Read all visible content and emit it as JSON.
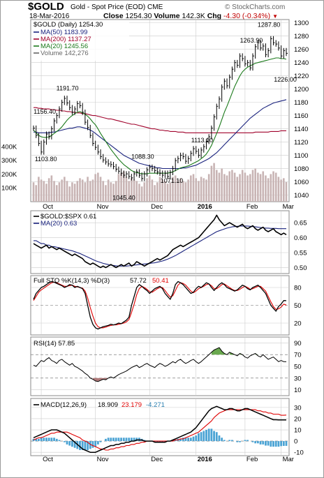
{
  "header": {
    "symbol": "$GOLD",
    "name": "Gold - Spot Price (EOD)",
    "exchange": "CME",
    "date": "18-Mar-2016",
    "close_label": "Close",
    "close": "1254.30",
    "volume_label": "Volume",
    "volume": "142.3K",
    "chg_label": "Chg",
    "chg": "-4.30 (-0.34%)",
    "brand": "© StockCharts.com"
  },
  "colors": {
    "price": "#000000",
    "ma50": "#1a237e",
    "ma200": "#a0002a",
    "ma20": "#1b7a1b",
    "volume": "#c8b4b4",
    "k": "#000000",
    "d": "#e00000",
    "rsi": "#000000",
    "macd": "#000000",
    "signal": "#e00000",
    "hist": "#4aa3d4",
    "ratio": "#000000",
    "ratio_ma": "#1a237e",
    "grid": "#cccccc"
  },
  "chart_data": [
    {
      "type": "line",
      "panel": "price",
      "legend": {
        "main": "$GOLD (Daily) 1254.30",
        "ma50": "MA(50) 1183.99",
        "ma200": "MA(200) 1137.27",
        "ma20": "MA(20) 1245.56",
        "volume": "Volume 142,276"
      },
      "ylim": [
        1030,
        1305
      ],
      "y_ticks": [
        "1300",
        "1280",
        "1260",
        "1240",
        "1220",
        "1200",
        "1180",
        "1160",
        "1140",
        "1120",
        "1100",
        "1080",
        "1060",
        "1040"
      ],
      "volume_ticks": [
        "400K",
        "300K",
        "200K",
        "100K"
      ],
      "x_ticks": [
        "Oct",
        "Nov",
        "Dec",
        "2016",
        "Feb",
        "Mar"
      ],
      "annotations": [
        "1191.70",
        "1156.40",
        "1103.80",
        "1113.10",
        "1088.30",
        "1071.10",
        "1045.40",
        "1263.90",
        "1287.80",
        "1226.00"
      ],
      "close": [
        1141,
        1130,
        1118,
        1105,
        1120,
        1132,
        1128,
        1140,
        1152,
        1160,
        1170,
        1180,
        1186,
        1179,
        1172,
        1165,
        1170,
        1178,
        1175,
        1165,
        1150,
        1142,
        1130,
        1118,
        1112,
        1105,
        1098,
        1093,
        1090,
        1087,
        1086,
        1083,
        1079,
        1076,
        1073,
        1070,
        1072,
        1068,
        1066,
        1072,
        1075,
        1070,
        1065,
        1072,
        1078,
        1082,
        1080,
        1077,
        1075,
        1073,
        1070,
        1073,
        1068,
        1074,
        1080,
        1092,
        1095,
        1100,
        1098,
        1091,
        1095,
        1103,
        1110,
        1106,
        1100,
        1108,
        1113,
        1121,
        1128,
        1141,
        1158,
        1174,
        1185,
        1203,
        1212,
        1205,
        1218,
        1230,
        1240,
        1236,
        1250,
        1246,
        1238,
        1240,
        1232,
        1250,
        1264,
        1270,
        1262,
        1265,
        1252,
        1258,
        1276,
        1270,
        1268,
        1262,
        1250,
        1258,
        1254
      ],
      "ma20": [
        1138,
        1134,
        1130,
        1128,
        1127,
        1127,
        1128,
        1130,
        1133,
        1136,
        1139,
        1143,
        1148,
        1153,
        1157,
        1160,
        1163,
        1165,
        1166,
        1164,
        1162,
        1159,
        1155,
        1150,
        1146,
        1140,
        1133,
        1127,
        1121,
        1115,
        1109,
        1104,
        1099,
        1094,
        1090,
        1086,
        1083,
        1080,
        1077,
        1075,
        1074,
        1073,
        1072,
        1072,
        1072,
        1073,
        1073,
        1073,
        1073,
        1073,
        1073,
        1073,
        1073,
        1074,
        1075,
        1077,
        1079,
        1081,
        1082,
        1083,
        1084,
        1086,
        1088,
        1090,
        1092,
        1095,
        1098,
        1102,
        1108,
        1115,
        1124,
        1133,
        1143,
        1154,
        1165,
        1174,
        1184,
        1194,
        1204,
        1212,
        1220,
        1226,
        1230,
        1233,
        1235,
        1237,
        1239,
        1240,
        1241,
        1242,
        1243,
        1244,
        1245,
        1246,
        1247,
        1247,
        1246,
        1246,
        1245
      ],
      "ma50": [
        1135,
        1135,
        1134,
        1134,
        1134,
        1134,
        1134,
        1135,
        1135,
        1136,
        1137,
        1138,
        1139,
        1140,
        1141,
        1141,
        1142,
        1143,
        1143,
        1142,
        1141,
        1140,
        1138,
        1136,
        1133,
        1130,
        1127,
        1124,
        1121,
        1118,
        1115,
        1112,
        1109,
        1106,
        1103,
        1100,
        1098,
        1096,
        1094,
        1092,
        1090,
        1088,
        1087,
        1086,
        1085,
        1084,
        1083,
        1082,
        1081,
        1081,
        1080,
        1080,
        1080,
        1080,
        1080,
        1080,
        1080,
        1080,
        1081,
        1081,
        1082,
        1083,
        1084,
        1085,
        1087,
        1089,
        1091,
        1093,
        1095,
        1098,
        1101,
        1104,
        1108,
        1112,
        1116,
        1120,
        1124,
        1128,
        1132,
        1136,
        1140,
        1144,
        1148,
        1152,
        1156,
        1159,
        1162,
        1165,
        1168,
        1171,
        1173,
        1175,
        1177,
        1179,
        1180,
        1181,
        1182,
        1183,
        1184
      ],
      "ma200": [
        1172,
        1172,
        1171,
        1171,
        1170,
        1170,
        1170,
        1169,
        1169,
        1168,
        1168,
        1167,
        1167,
        1166,
        1166,
        1165,
        1165,
        1164,
        1164,
        1163,
        1163,
        1162,
        1161,
        1160,
        1160,
        1159,
        1158,
        1157,
        1156,
        1155,
        1155,
        1154,
        1153,
        1152,
        1151,
        1150,
        1149,
        1148,
        1147,
        1147,
        1146,
        1145,
        1144,
        1143,
        1142,
        1141,
        1140,
        1140,
        1139,
        1138,
        1138,
        1137,
        1137,
        1136,
        1136,
        1136,
        1135,
        1135,
        1135,
        1134,
        1134,
        1134,
        1134,
        1134,
        1134,
        1134,
        1134,
        1134,
        1134,
        1134,
        1134,
        1134,
        1134,
        1134,
        1134,
        1134,
        1134,
        1134,
        1134,
        1134,
        1134,
        1134,
        1134,
        1134,
        1134,
        1134,
        1135,
        1135,
        1135,
        1135,
        1135,
        1135,
        1136,
        1136,
        1136,
        1136,
        1137,
        1137,
        1137
      ],
      "volume_k": [
        140,
        120,
        180,
        160,
        150,
        130,
        170,
        190,
        150,
        120,
        140,
        160,
        180,
        150,
        110,
        140,
        130,
        150,
        170,
        160,
        140,
        180,
        150,
        160,
        200,
        210,
        180,
        150,
        120,
        160,
        140,
        130,
        150,
        200,
        210,
        220,
        180,
        150,
        170,
        160,
        150,
        130,
        110,
        140,
        170,
        190,
        160,
        120,
        140,
        180,
        160,
        150,
        130,
        140,
        180,
        190,
        160,
        170,
        150,
        140,
        160,
        190,
        200,
        170,
        150,
        180,
        170,
        160,
        200,
        260,
        280,
        230,
        210,
        240,
        200,
        190,
        220,
        230,
        210,
        180,
        200,
        230,
        210,
        190,
        200,
        230,
        240,
        210,
        200,
        220,
        190,
        170,
        200,
        220,
        210,
        180,
        160,
        170,
        142
      ]
    },
    {
      "type": "line",
      "panel": "ratio",
      "legend": {
        "main": "$GOLD:$SPX 0.61",
        "ma": "MA(20) 0.63"
      },
      "ylim": [
        0.48,
        0.69
      ],
      "y_ticks": [
        "0.65",
        "0.60",
        "0.55",
        "0.50"
      ],
      "ratio": [
        0.58,
        0.575,
        0.57,
        0.565,
        0.57,
        0.575,
        0.565,
        0.57,
        0.565,
        0.56,
        0.565,
        0.56,
        0.555,
        0.55,
        0.545,
        0.54,
        0.545,
        0.54,
        0.535,
        0.53,
        0.52,
        0.515,
        0.51,
        0.515,
        0.51,
        0.505,
        0.5,
        0.505,
        0.5,
        0.505,
        0.51,
        0.505,
        0.5,
        0.505,
        0.51,
        0.505,
        0.51,
        0.515,
        0.505,
        0.51,
        0.52,
        0.515,
        0.51,
        0.505,
        0.51,
        0.515,
        0.52,
        0.525,
        0.53,
        0.525,
        0.53,
        0.535,
        0.54,
        0.55,
        0.56,
        0.565,
        0.57,
        0.575,
        0.57,
        0.575,
        0.58,
        0.585,
        0.59,
        0.595,
        0.6,
        0.61,
        0.62,
        0.63,
        0.64,
        0.65,
        0.66,
        0.675,
        0.66,
        0.65,
        0.64,
        0.645,
        0.65,
        0.645,
        0.64,
        0.635,
        0.64,
        0.645,
        0.635,
        0.63,
        0.635,
        0.64,
        0.63,
        0.625,
        0.63,
        0.635,
        0.625,
        0.62,
        0.625,
        0.63,
        0.62,
        0.615,
        0.61,
        0.615,
        0.61
      ],
      "ma": [
        0.59,
        0.59,
        0.585,
        0.58,
        0.58,
        0.575,
        0.575,
        0.57,
        0.57,
        0.568,
        0.566,
        0.564,
        0.562,
        0.56,
        0.558,
        0.556,
        0.553,
        0.55,
        0.547,
        0.543,
        0.539,
        0.535,
        0.531,
        0.527,
        0.523,
        0.52,
        0.517,
        0.514,
        0.512,
        0.51,
        0.508,
        0.507,
        0.506,
        0.505,
        0.505,
        0.505,
        0.505,
        0.506,
        0.507,
        0.508,
        0.509,
        0.51,
        0.511,
        0.512,
        0.513,
        0.514,
        0.515,
        0.516,
        0.518,
        0.52,
        0.522,
        0.525,
        0.528,
        0.532,
        0.536,
        0.54,
        0.545,
        0.55,
        0.555,
        0.56,
        0.565,
        0.57,
        0.575,
        0.58,
        0.585,
        0.59,
        0.595,
        0.6,
        0.605,
        0.61,
        0.615,
        0.62,
        0.623,
        0.626,
        0.629,
        0.632,
        0.634,
        0.636,
        0.637,
        0.638,
        0.639,
        0.639,
        0.639,
        0.639,
        0.638,
        0.637,
        0.636,
        0.635,
        0.634,
        0.633,
        0.632,
        0.632,
        0.631,
        0.631,
        0.631,
        0.63,
        0.63,
        0.63,
        0.63
      ]
    },
    {
      "type": "line",
      "panel": "stochastic",
      "legend": {
        "main": "Full STO %K(14,3) %D(3)",
        "k": "57.72",
        "d": "50.41"
      },
      "ylim": [
        0,
        100
      ],
      "y_ticks": [
        "80",
        "50",
        "20"
      ],
      "k": [
        60,
        70,
        75,
        80,
        82,
        85,
        88,
        90,
        89,
        87,
        85,
        83,
        80,
        82,
        85,
        84,
        80,
        82,
        80,
        78,
        70,
        50,
        30,
        18,
        12,
        10,
        12,
        14,
        15,
        16,
        18,
        17,
        18,
        20,
        19,
        22,
        25,
        30,
        50,
        65,
        80,
        85,
        82,
        78,
        75,
        70,
        74,
        78,
        80,
        82,
        78,
        70,
        65,
        60,
        70,
        85,
        90,
        88,
        85,
        80,
        75,
        70,
        72,
        78,
        82,
        80,
        84,
        88,
        86,
        80,
        75,
        80,
        85,
        88,
        85,
        80,
        78,
        76,
        74,
        76,
        80,
        84,
        82,
        78,
        76,
        80,
        82,
        84,
        80,
        75,
        70,
        60,
        50,
        45,
        40,
        48,
        52,
        58,
        57.72
      ],
      "d": [
        58,
        65,
        72,
        76,
        79,
        82,
        85,
        88,
        89,
        88,
        86,
        84,
        82,
        82,
        83,
        84,
        82,
        81,
        80,
        79,
        74,
        62,
        46,
        32,
        20,
        14,
        12,
        12,
        13,
        15,
        16,
        17,
        17,
        18,
        19,
        20,
        22,
        26,
        38,
        52,
        68,
        78,
        82,
        80,
        77,
        73,
        72,
        75,
        78,
        80,
        80,
        75,
        69,
        64,
        66,
        75,
        84,
        88,
        87,
        84,
        79,
        74,
        71,
        74,
        78,
        80,
        82,
        85,
        86,
        83,
        78,
        78,
        81,
        85,
        86,
        83,
        80,
        77,
        75,
        75,
        77,
        80,
        82,
        80,
        77,
        78,
        80,
        82,
        82,
        78,
        74,
        65,
        56,
        48,
        43,
        44,
        47,
        52,
        50.41
      ]
    },
    {
      "type": "line",
      "panel": "rsi",
      "legend": {
        "main": "RSI(14) 57.85"
      },
      "ylim": [
        0,
        100
      ],
      "y_ticks": [
        "90",
        "70",
        "50",
        "30",
        "10"
      ],
      "rsi": [
        52,
        50,
        55,
        60,
        58,
        62,
        65,
        60,
        58,
        55,
        60,
        62,
        58,
        55,
        52,
        55,
        50,
        48,
        45,
        42,
        38,
        35,
        30,
        28,
        25,
        24,
        26,
        28,
        27,
        30,
        32,
        30,
        33,
        36,
        38,
        40,
        42,
        45,
        48,
        50,
        52,
        48,
        50,
        53,
        55,
        52,
        50,
        48,
        52,
        55,
        53,
        50,
        52,
        55,
        58,
        56,
        60,
        62,
        58,
        55,
        57,
        60,
        62,
        58,
        55,
        58,
        62,
        66,
        70,
        74,
        78,
        80,
        82,
        76,
        72,
        70,
        74,
        72,
        70,
        68,
        72,
        70,
        66,
        64,
        68,
        70,
        72,
        68,
        66,
        70,
        66,
        62,
        64,
        66,
        62,
        58,
        60,
        58,
        57.85
      ]
    },
    {
      "type": "line",
      "panel": "macd",
      "legend": {
        "main": "MACD(12,26,9)",
        "macd": "18.909",
        "signal": "23.179",
        "hist": "-4.271"
      },
      "ylim": [
        -13,
        38
      ],
      "y_ticks": [
        "30",
        "20",
        "10",
        "0",
        "-10"
      ],
      "macd": [
        3,
        4,
        5,
        6,
        7,
        8,
        9,
        10,
        10,
        10,
        9,
        8,
        7,
        5,
        3,
        1,
        -1,
        -3,
        -5,
        -7,
        -8,
        -9,
        -10,
        -10,
        -10,
        -9,
        -8,
        -7,
        -6,
        -5,
        -4,
        -4,
        -3,
        -3,
        -2,
        -2,
        -1,
        -1,
        0,
        0,
        1,
        1,
        1,
        0,
        0,
        0,
        0,
        -1,
        -1,
        -1,
        -1,
        -1,
        0,
        0,
        1,
        2,
        3,
        4,
        5,
        6,
        7,
        8,
        10,
        12,
        15,
        18,
        21,
        24,
        27,
        29,
        30,
        31,
        30,
        29,
        28,
        28,
        29,
        29,
        28,
        27,
        27,
        28,
        29,
        29,
        28,
        27,
        26,
        25,
        24,
        23,
        22,
        21,
        20,
        19,
        19,
        18.909,
        18.9,
        18.9,
        18.909
      ],
      "signal": [
        1,
        2,
        3,
        3,
        4,
        5,
        6,
        7,
        7,
        8,
        8,
        8,
        8,
        8,
        7,
        6,
        5,
        4,
        3,
        1,
        0,
        -1,
        -3,
        -4,
        -5,
        -6,
        -7,
        -7,
        -8,
        -8,
        -7,
        -7,
        -6,
        -6,
        -5,
        -5,
        -4,
        -4,
        -3,
        -3,
        -2,
        -2,
        -1,
        -1,
        0,
        0,
        0,
        0,
        0,
        0,
        0,
        0,
        0,
        0,
        0,
        1,
        1,
        2,
        2,
        3,
        4,
        5,
        6,
        7,
        8,
        10,
        12,
        14,
        16,
        18,
        21,
        23,
        25,
        26,
        27,
        28,
        28,
        28,
        28,
        28,
        28,
        28,
        28,
        28,
        28,
        28,
        28,
        27,
        27,
        26,
        26,
        25,
        25,
        24,
        24,
        24,
        23,
        23,
        23.179
      ],
      "hist": [
        2,
        2,
        2,
        3,
        3,
        3,
        3,
        3,
        3,
        2,
        1,
        0,
        -1,
        -3,
        -4,
        -5,
        -6,
        -7,
        -8,
        -8,
        -8,
        -8,
        -7,
        -6,
        -5,
        -3,
        -1,
        0,
        2,
        3,
        3,
        3,
        3,
        3,
        3,
        3,
        3,
        3,
        3,
        3,
        3,
        3,
        2,
        1,
        0,
        0,
        0,
        -1,
        -1,
        -1,
        -1,
        -1,
        0,
        0,
        1,
        1,
        2,
        2,
        3,
        3,
        3,
        3,
        4,
        5,
        7,
        8,
        9,
        10,
        11,
        11,
        9,
        8,
        5,
        3,
        1,
        0,
        1,
        1,
        0,
        -1,
        -1,
        0,
        1,
        1,
        0,
        -1,
        -2,
        -2,
        -3,
        -3,
        -4,
        -4,
        -5,
        -5,
        -5,
        -5,
        -4.5,
        -4.3,
        -4.271
      ]
    }
  ]
}
